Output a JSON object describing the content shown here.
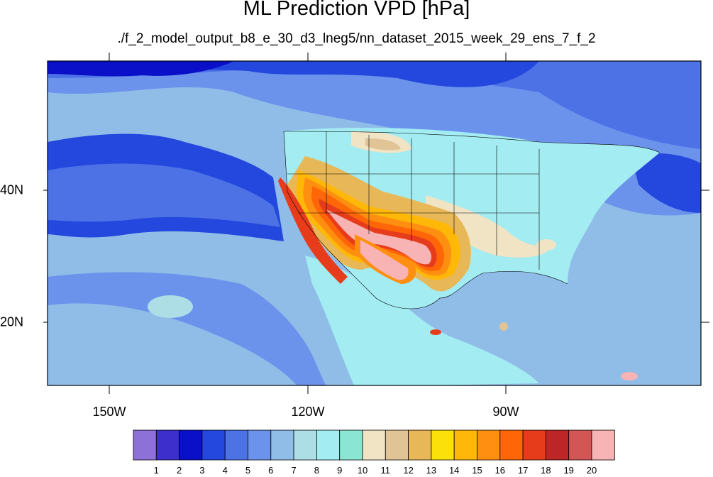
{
  "title": "ML Prediction VPD [hPa]",
  "subtitle": "./f_2_model_output_b8_e_30_d3_lneg5/nn_dataset_2015_week_29_ens_7_f_2",
  "axes": {
    "lon_labels": [
      "150W",
      "120W",
      "90W"
    ],
    "lat_labels": [
      "40N",
      "20N"
    ]
  },
  "colorbar": {
    "colors": [
      "#8e70d9",
      "#3c2fcc",
      "#0a0fc8",
      "#2448de",
      "#4c72e6",
      "#6b93ec",
      "#90bde8",
      "#addee6",
      "#a2ecf2",
      "#8ae6d2",
      "#f1e4c4",
      "#e0c496",
      "#e8b858",
      "#fce00a",
      "#ffb808",
      "#ff8f10",
      "#ff6608",
      "#e73c1c",
      "#bd2626",
      "#d25656",
      "#f8b4b4"
    ],
    "labels": [
      "1",
      "2",
      "3",
      "4",
      "5",
      "6",
      "7",
      "8",
      "9",
      "10",
      "11",
      "12",
      "13",
      "14",
      "15",
      "16",
      "17",
      "18",
      "19",
      "20"
    ]
  }
}
